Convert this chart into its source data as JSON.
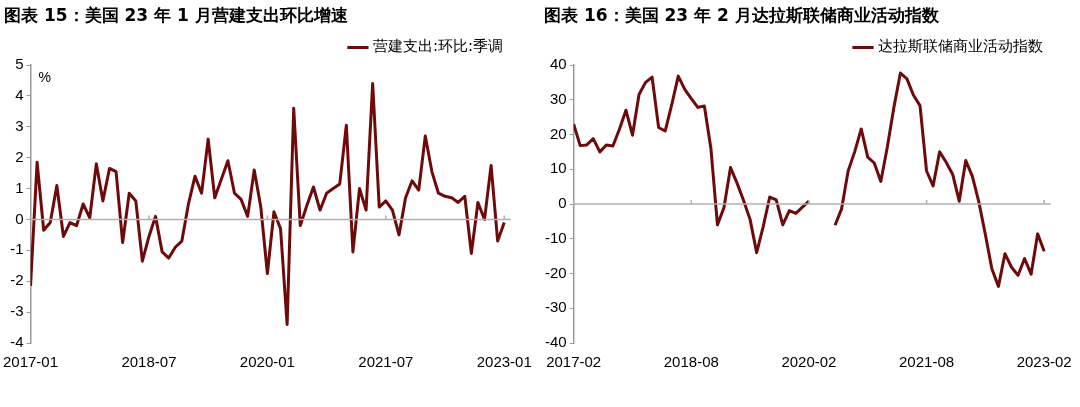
{
  "chart_data": [
    {
      "type": "line",
      "title": "图表 15：美国 23 年 1 月营建支出环比增速",
      "ylabel": "%",
      "legend": "top",
      "x": [
        "2017-01",
        "2017-02",
        "2017-03",
        "2017-04",
        "2017-05",
        "2017-06",
        "2017-07",
        "2017-08",
        "2017-09",
        "2017-10",
        "2017-11",
        "2017-12",
        "2018-01",
        "2018-02",
        "2018-03",
        "2018-04",
        "2018-05",
        "2018-06",
        "2018-07",
        "2018-08",
        "2018-09",
        "2018-10",
        "2018-11",
        "2018-12",
        "2019-01",
        "2019-02",
        "2019-03",
        "2019-04",
        "2019-05",
        "2019-06",
        "2019-07",
        "2019-08",
        "2019-09",
        "2019-10",
        "2019-11",
        "2019-12",
        "2020-01",
        "2020-02",
        "2020-03",
        "2020-04",
        "2020-05",
        "2020-06",
        "2020-07",
        "2020-08",
        "2020-09",
        "2020-10",
        "2020-11",
        "2020-12",
        "2021-01",
        "2021-02",
        "2021-03",
        "2021-04",
        "2021-05",
        "2021-06",
        "2021-07",
        "2021-08",
        "2021-09",
        "2021-10",
        "2021-11",
        "2021-12",
        "2022-01",
        "2022-02",
        "2022-03",
        "2022-04",
        "2022-05",
        "2022-06",
        "2022-07",
        "2022-08",
        "2022-09",
        "2022-10",
        "2022-11",
        "2022-12",
        "2023-01"
      ],
      "series": [
        {
          "name": "营建支出:环比:季调",
          "color": "#6e0a0a",
          "values": [
            -2.15,
            1.85,
            -0.35,
            -0.1,
            1.1,
            -0.55,
            -0.1,
            -0.2,
            0.5,
            0.05,
            1.8,
            0.6,
            1.65,
            1.55,
            -0.75,
            0.85,
            0.6,
            -1.35,
            -0.55,
            0.1,
            -1.05,
            -1.25,
            -0.9,
            -0.7,
            0.5,
            1.4,
            0.85,
            2.6,
            0.7,
            1.3,
            1.9,
            0.85,
            0.65,
            0.1,
            1.6,
            0.4,
            -1.75,
            0.25,
            -0.3,
            -3.4,
            3.6,
            -0.2,
            0.45,
            1.05,
            0.3,
            0.85,
            1.0,
            1.15,
            3.05,
            -1.05,
            1.0,
            0.3,
            4.4,
            0.4,
            0.6,
            0.3,
            -0.5,
            0.7,
            1.25,
            0.95,
            2.7,
            1.55,
            0.85,
            0.75,
            0.7,
            0.55,
            0.75,
            -1.1,
            0.55,
            0.0,
            1.75,
            -0.7,
            -0.1
          ]
        }
      ],
      "xlim": [
        "2017-01",
        "2023-02"
      ],
      "xticks": [
        "2017-01",
        "2018-07",
        "2020-01",
        "2021-07",
        "2023-01"
      ],
      "ylim": [
        -4,
        5
      ],
      "yticks": [
        -4,
        -3,
        -2,
        -1,
        0,
        1,
        2,
        3,
        4,
        5
      ]
    },
    {
      "type": "line",
      "title": "图表 16：美国 23 年 2 月达拉斯联储商业活动指数",
      "legend": "top",
      "x": [
        "2017-02",
        "2017-03",
        "2017-04",
        "2017-05",
        "2017-06",
        "2017-07",
        "2017-08",
        "2017-09",
        "2017-10",
        "2017-11",
        "2017-12",
        "2018-01",
        "2018-02",
        "2018-03",
        "2018-04",
        "2018-05",
        "2018-06",
        "2018-07",
        "2018-08",
        "2018-09",
        "2018-10",
        "2018-11",
        "2018-12",
        "2019-01",
        "2019-02",
        "2019-03",
        "2019-04",
        "2019-05",
        "2019-06",
        "2019-07",
        "2019-08",
        "2019-09",
        "2019-10",
        "2019-11",
        "2019-12",
        "2020-01",
        "2020-02",
        "2020-03",
        "2020-04",
        "2020-05",
        "2020-06",
        "2020-07",
        "2020-08",
        "2020-09",
        "2020-10",
        "2020-11",
        "2020-12",
        "2021-01",
        "2021-02",
        "2021-03",
        "2021-04",
        "2021-05",
        "2021-06",
        "2021-07",
        "2021-08",
        "2021-09",
        "2021-10",
        "2021-11",
        "2021-12",
        "2022-01",
        "2022-02",
        "2022-03",
        "2022-04",
        "2022-05",
        "2022-06",
        "2022-07",
        "2022-08",
        "2022-09",
        "2022-10",
        "2022-11",
        "2022-12",
        "2023-01",
        "2023-02"
      ],
      "series": [
        {
          "name": "达拉斯联储商业活动指数",
          "color": "#6e0a0a",
          "values": [
            23,
            16.8,
            17,
            18.8,
            15,
            17,
            16.7,
            21.5,
            27,
            19.8,
            31.5,
            35,
            36.5,
            22,
            21,
            28.5,
            36.8,
            33,
            30.3,
            27.8,
            28.2,
            16,
            -6,
            -1,
            10.5,
            6,
            1,
            -4.5,
            -14,
            -6.5,
            2,
            1.2,
            -6,
            -1.9,
            -2.7,
            -0.9,
            0.8,
            null,
            null,
            null,
            -6.1,
            -1.4,
            9.5,
            15,
            21.6,
            13.5,
            11.8,
            6.5,
            16.4,
            27.8,
            37.7,
            36,
            31.3,
            28.3,
            9.5,
            5.2,
            15,
            12,
            8.5,
            0.8,
            12.5,
            8,
            0.6,
            -8.8,
            -18.7,
            -23.7,
            -14.3,
            -18.2,
            -20.5,
            -15.7,
            -20.2,
            -8.6,
            -13.6
          ]
        }
      ],
      "xlim": [
        "2017-02",
        "2023-03"
      ],
      "xticks": [
        "2017-02",
        "2018-08",
        "2020-02",
        "2021-08",
        "2023-02"
      ],
      "ylim": [
        -40,
        40
      ],
      "yticks": [
        -40,
        -30,
        -20,
        -10,
        0,
        10,
        20,
        30,
        40
      ]
    }
  ]
}
